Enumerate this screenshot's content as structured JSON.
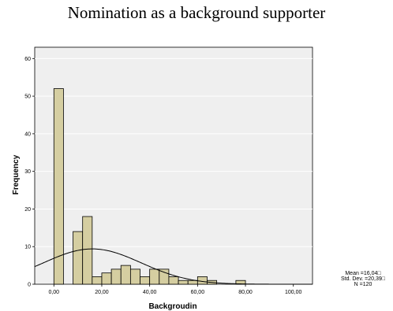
{
  "chart_data": {
    "type": "histogram",
    "title": "Nomination as a background supporter",
    "xlabel": "Backgroudin",
    "ylabel": "Frequency",
    "xlim": [
      -8,
      108
    ],
    "ylim": [
      0,
      63
    ],
    "x_ticks": [
      0,
      20,
      40,
      60,
      80,
      100
    ],
    "x_tick_labels": [
      "0,00",
      "20,00",
      "40,00",
      "60,00",
      "80,00",
      "100,00"
    ],
    "y_ticks": [
      0,
      10,
      20,
      30,
      40,
      50,
      60
    ],
    "y_tick_labels": [
      "0",
      "10",
      "20",
      "30",
      "40",
      "50",
      "60"
    ],
    "bin_width": 4,
    "bins": [
      {
        "start": 0,
        "count": 52
      },
      {
        "start": 4,
        "count": 0
      },
      {
        "start": 8,
        "count": 14
      },
      {
        "start": 12,
        "count": 18
      },
      {
        "start": 16,
        "count": 2
      },
      {
        "start": 20,
        "count": 3
      },
      {
        "start": 24,
        "count": 4
      },
      {
        "start": 28,
        "count": 5
      },
      {
        "start": 32,
        "count": 4
      },
      {
        "start": 36,
        "count": 2
      },
      {
        "start": 40,
        "count": 4
      },
      {
        "start": 44,
        "count": 4
      },
      {
        "start": 48,
        "count": 2
      },
      {
        "start": 52,
        "count": 1
      },
      {
        "start": 56,
        "count": 1
      },
      {
        "start": 60,
        "count": 2
      },
      {
        "start": 64,
        "count": 1
      },
      {
        "start": 68,
        "count": 0
      },
      {
        "start": 72,
        "count": 0
      },
      {
        "start": 76,
        "count": 1
      }
    ],
    "normal_curve": {
      "mean": 16.04,
      "sd": 20.39,
      "n": 120
    },
    "stats_lines": [
      "Mean =16,04□",
      "Std. Dev. =20,39□",
      "N =120"
    ],
    "colors": {
      "bar_fill": "#d5cea1",
      "bar_stroke": "#000000",
      "plot_bg": "#efefef"
    }
  }
}
